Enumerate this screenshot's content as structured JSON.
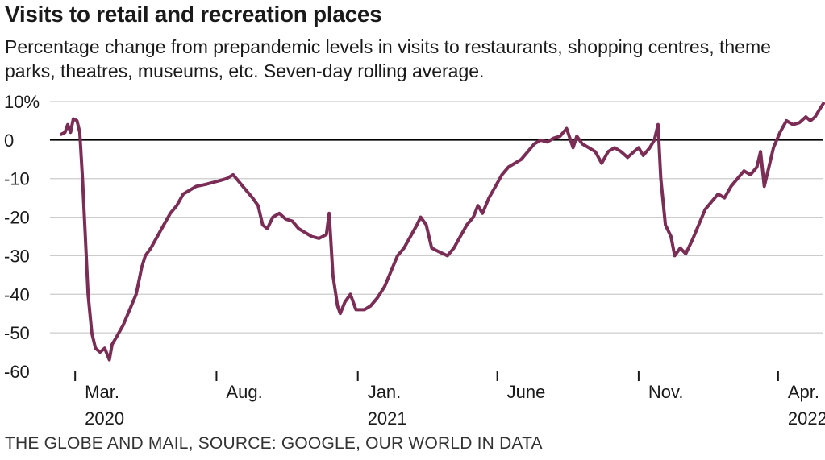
{
  "header": {
    "title": "Visits to retail and recreation places",
    "subtitle": "Percentage change from prepandemic levels in visits to restaurants, shopping centres, theme parks, theatres, museums, etc. Seven-day rolling average."
  },
  "footer": {
    "source": "THE GLOBE AND MAIL, SOURCE: GOOGLE, OUR WORLD IN DATA"
  },
  "colors": {
    "line": "#7b2d55",
    "zero_line": "#000000",
    "grid": "#cccccc"
  },
  "chart_data": {
    "type": "line",
    "title": "Visits to retail and recreation places",
    "subtitle": "Percentage change from prepandemic levels in visits to restaurants, shopping centres, theme parks, theatres, museums, etc. Seven-day rolling average.",
    "ylim": [
      -60,
      10
    ],
    "y_ticks": [
      {
        "value": 10,
        "label": "10%"
      },
      {
        "value": 0,
        "label": "0"
      },
      {
        "value": -10,
        "label": "-10"
      },
      {
        "value": -20,
        "label": "-20"
      },
      {
        "value": -30,
        "label": "-30"
      },
      {
        "value": -40,
        "label": "-40"
      },
      {
        "value": -50,
        "label": "-50"
      },
      {
        "value": -60,
        "label": "-60"
      }
    ],
    "xlim": [
      "2020-02-15",
      "2022-05-20"
    ],
    "x_ticks": [
      {
        "date": "2020-03-01",
        "line1": "Mar.",
        "line2": "2020"
      },
      {
        "date": "2020-08-01",
        "line1": "Aug.",
        "line2": ""
      },
      {
        "date": "2021-01-01",
        "line1": "Jan.",
        "line2": "2021"
      },
      {
        "date": "2021-06-01",
        "line1": "June",
        "line2": ""
      },
      {
        "date": "2021-11-01",
        "line1": "Nov.",
        "line2": ""
      },
      {
        "date": "2022-04-01",
        "line1": "Apr.",
        "line2": "2022"
      }
    ],
    "grid": true,
    "zero_line": true,
    "series": [
      {
        "points": [
          [
            "2020-02-15",
            1.5
          ],
          [
            "2020-02-19",
            2
          ],
          [
            "2020-02-22",
            4
          ],
          [
            "2020-02-25",
            2
          ],
          [
            "2020-02-28",
            5.5
          ],
          [
            "2020-03-03",
            5
          ],
          [
            "2020-03-06",
            2
          ],
          [
            "2020-03-09",
            -10
          ],
          [
            "2020-03-12",
            -25
          ],
          [
            "2020-03-15",
            -40
          ],
          [
            "2020-03-19",
            -50
          ],
          [
            "2020-03-23",
            -54
          ],
          [
            "2020-03-28",
            -55
          ],
          [
            "2020-04-02",
            -54
          ],
          [
            "2020-04-07",
            -57
          ],
          [
            "2020-04-10",
            -53
          ],
          [
            "2020-04-15",
            -51
          ],
          [
            "2020-04-22",
            -48
          ],
          [
            "2020-04-29",
            -44
          ],
          [
            "2020-05-06",
            -40
          ],
          [
            "2020-05-12",
            -33
          ],
          [
            "2020-05-16",
            -30
          ],
          [
            "2020-05-22",
            -28
          ],
          [
            "2020-05-29",
            -25
          ],
          [
            "2020-06-05",
            -22
          ],
          [
            "2020-06-12",
            -19
          ],
          [
            "2020-06-19",
            -17
          ],
          [
            "2020-06-26",
            -14
          ],
          [
            "2020-07-03",
            -13
          ],
          [
            "2020-07-10",
            -12
          ],
          [
            "2020-07-20",
            -11.5
          ],
          [
            "2020-07-28",
            -11
          ],
          [
            "2020-08-05",
            -10.5
          ],
          [
            "2020-08-12",
            -10
          ],
          [
            "2020-08-19",
            -9
          ],
          [
            "2020-08-26",
            -11
          ],
          [
            "2020-09-02",
            -13
          ],
          [
            "2020-09-09",
            -15
          ],
          [
            "2020-09-15",
            -17
          ],
          [
            "2020-09-20",
            -22
          ],
          [
            "2020-09-25",
            -23
          ],
          [
            "2020-10-01",
            -20
          ],
          [
            "2020-10-08",
            -19
          ],
          [
            "2020-10-15",
            -20.5
          ],
          [
            "2020-10-22",
            -21
          ],
          [
            "2020-10-29",
            -23
          ],
          [
            "2020-11-05",
            -24
          ],
          [
            "2020-11-12",
            -25
          ],
          [
            "2020-11-20",
            -25.5
          ],
          [
            "2020-11-28",
            -24.5
          ],
          [
            "2020-12-01",
            -19
          ],
          [
            "2020-12-05",
            -35
          ],
          [
            "2020-12-10",
            -43
          ],
          [
            "2020-12-13",
            -45
          ],
          [
            "2020-12-18",
            -42
          ],
          [
            "2020-12-24",
            -40
          ],
          [
            "2020-12-30",
            -44
          ],
          [
            "2021-01-08",
            -44
          ],
          [
            "2021-01-15",
            -43
          ],
          [
            "2021-01-22",
            -41
          ],
          [
            "2021-01-30",
            -38
          ],
          [
            "2021-02-06",
            -34
          ],
          [
            "2021-02-13",
            -30
          ],
          [
            "2021-02-20",
            -28
          ],
          [
            "2021-02-27",
            -25
          ],
          [
            "2021-03-06",
            -22
          ],
          [
            "2021-03-10",
            -20
          ],
          [
            "2021-03-16",
            -22
          ],
          [
            "2021-03-22",
            -28
          ],
          [
            "2021-03-30",
            -29
          ],
          [
            "2021-04-08",
            -30
          ],
          [
            "2021-04-15",
            -28
          ],
          [
            "2021-04-22",
            -25
          ],
          [
            "2021-04-29",
            -22
          ],
          [
            "2021-05-06",
            -20
          ],
          [
            "2021-05-11",
            -17
          ],
          [
            "2021-05-16",
            -19
          ],
          [
            "2021-05-23",
            -15
          ],
          [
            "2021-05-30",
            -12
          ],
          [
            "2021-06-06",
            -9
          ],
          [
            "2021-06-13",
            -7
          ],
          [
            "2021-06-20",
            -6
          ],
          [
            "2021-06-27",
            -5
          ],
          [
            "2021-07-04",
            -3
          ],
          [
            "2021-07-11",
            -1
          ],
          [
            "2021-07-18",
            0
          ],
          [
            "2021-07-25",
            -0.5
          ],
          [
            "2021-08-01",
            0.5
          ],
          [
            "2021-08-08",
            1
          ],
          [
            "2021-08-15",
            3
          ],
          [
            "2021-08-22",
            -2
          ],
          [
            "2021-08-26",
            1
          ],
          [
            "2021-09-01",
            -1
          ],
          [
            "2021-09-08",
            -2
          ],
          [
            "2021-09-15",
            -3
          ],
          [
            "2021-09-22",
            -6
          ],
          [
            "2021-09-29",
            -3
          ],
          [
            "2021-10-06",
            -2
          ],
          [
            "2021-10-13",
            -3
          ],
          [
            "2021-10-20",
            -4.5
          ],
          [
            "2021-10-27",
            -3
          ],
          [
            "2021-11-01",
            -2
          ],
          [
            "2021-11-06",
            -4
          ],
          [
            "2021-11-13",
            -2
          ],
          [
            "2021-11-18",
            0
          ],
          [
            "2021-11-22",
            4
          ],
          [
            "2021-11-25",
            -10
          ],
          [
            "2021-11-30",
            -22
          ],
          [
            "2021-12-06",
            -25
          ],
          [
            "2021-12-10",
            -30
          ],
          [
            "2021-12-16",
            -28
          ],
          [
            "2021-12-22",
            -29.5
          ],
          [
            "2021-12-29",
            -26
          ],
          [
            "2022-01-05",
            -22
          ],
          [
            "2022-01-12",
            -18
          ],
          [
            "2022-01-19",
            -16
          ],
          [
            "2022-01-26",
            -14
          ],
          [
            "2022-02-02",
            -15
          ],
          [
            "2022-02-09",
            -12
          ],
          [
            "2022-02-16",
            -10
          ],
          [
            "2022-02-23",
            -8
          ],
          [
            "2022-03-02",
            -9
          ],
          [
            "2022-03-09",
            -7
          ],
          [
            "2022-03-13",
            -3
          ],
          [
            "2022-03-17",
            -12
          ],
          [
            "2022-03-21",
            -8
          ],
          [
            "2022-03-27",
            -2
          ],
          [
            "2022-04-03",
            2
          ],
          [
            "2022-04-10",
            5
          ],
          [
            "2022-04-17",
            4
          ],
          [
            "2022-04-24",
            4.5
          ],
          [
            "2022-05-01",
            6
          ],
          [
            "2022-05-06",
            5
          ],
          [
            "2022-05-11",
            6
          ],
          [
            "2022-05-16",
            8
          ],
          [
            "2022-05-20",
            9.5
          ]
        ]
      }
    ]
  }
}
